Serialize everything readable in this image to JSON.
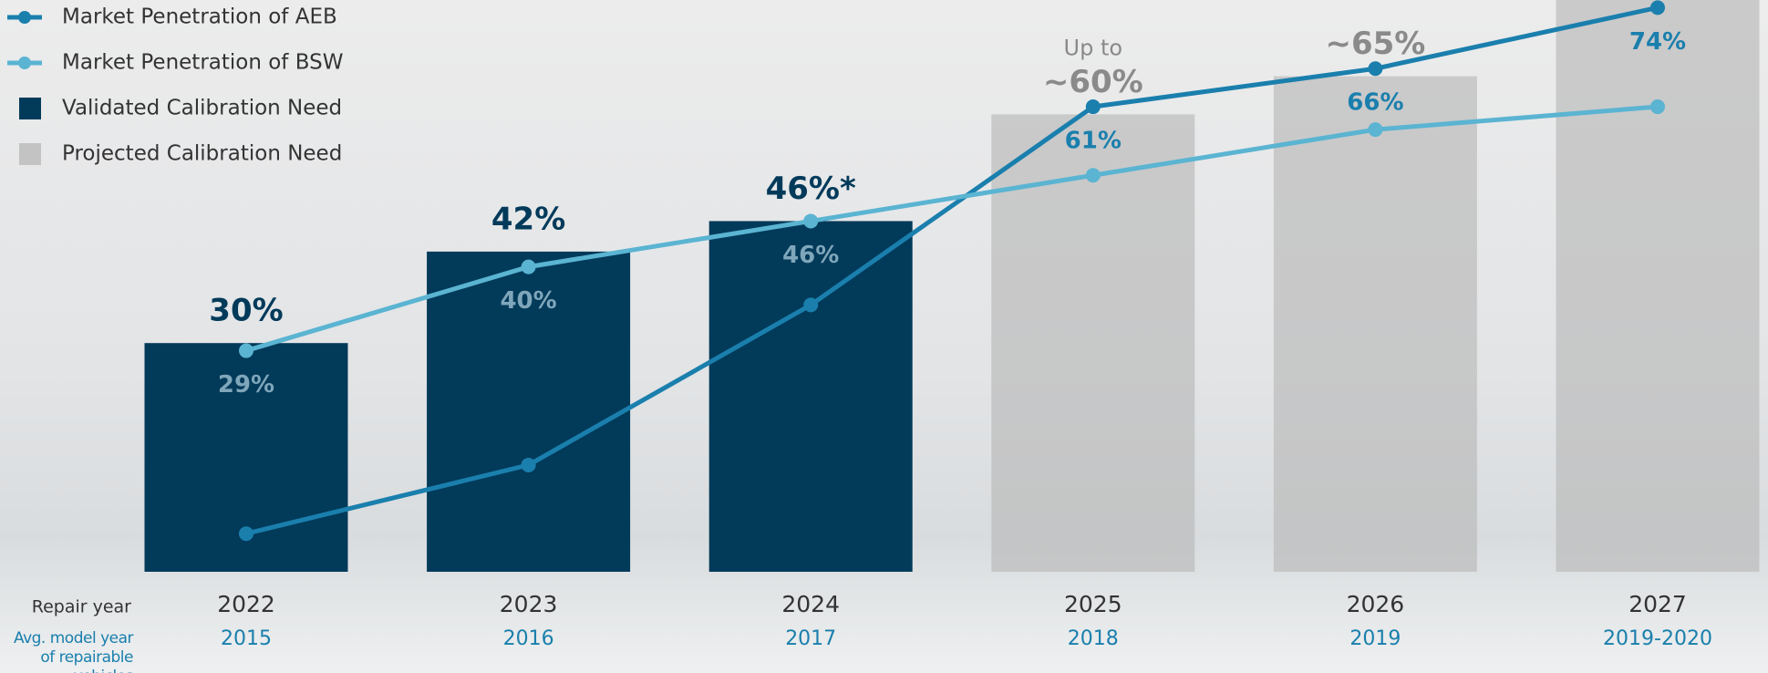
{
  "chart_data": {
    "type": "bar-line",
    "x_label": "Repair year",
    "x2_label": "Avg. model year of repairable vehicles",
    "categories": [
      "2022",
      "2023",
      "2024",
      "2025",
      "2026",
      "2027"
    ],
    "categories2": [
      "2015",
      "2016",
      "2017",
      "2018",
      "2019",
      "2019-2020"
    ],
    "ylim": [
      0,
      75
    ],
    "legend": "top-left",
    "annotation": "Up to",
    "bars": [
      {
        "name": "Validated Calibration Need",
        "color": "#023a5a",
        "values": [
          30,
          42,
          46,
          null,
          null,
          null
        ],
        "value_labels": [
          "30%",
          "42%",
          "46%*",
          null,
          null,
          null
        ]
      },
      {
        "name": "Projected Calibration Need",
        "color": "#b9b9b9",
        "values": [
          null,
          null,
          null,
          60,
          65,
          75
        ],
        "value_labels": [
          null,
          null,
          null,
          "~60%",
          "~65%",
          null
        ]
      }
    ],
    "series": [
      {
        "name": "Market Penetration of AEB",
        "color": "#1a7fad",
        "values": [
          5,
          14,
          35,
          61,
          66,
          74
        ],
        "value_labels": [
          null,
          null,
          null,
          "61%",
          "66%",
          "74%"
        ]
      },
      {
        "name": "Market Penetration of BSW",
        "color": "#5ab4d2",
        "values": [
          29,
          40,
          46,
          52,
          58,
          61
        ],
        "value_labels": [
          "29%",
          "40%",
          "46%",
          null,
          null,
          null
        ]
      }
    ]
  }
}
